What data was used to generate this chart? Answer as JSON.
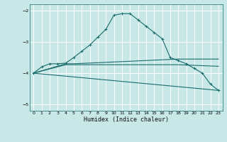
{
  "xlabel": "Humidex (Indice chaleur)",
  "bg_color": "#c8e8e8",
  "grid_color": "#ffffff",
  "line_color": "#1a6b6b",
  "xlim": [
    -0.5,
    23.5
  ],
  "ylim": [
    -5.2,
    -1.8
  ],
  "xticks": [
    0,
    1,
    2,
    3,
    4,
    5,
    6,
    7,
    8,
    9,
    10,
    11,
    12,
    13,
    14,
    15,
    16,
    17,
    18,
    19,
    20,
    21,
    22,
    23
  ],
  "yticks": [
    -5,
    -4,
    -3,
    -2
  ],
  "curve1_x": [
    0,
    1,
    2,
    3,
    4,
    5,
    6,
    7,
    8,
    9,
    10,
    11,
    12,
    13,
    14,
    15,
    16,
    17,
    18,
    19,
    20,
    21,
    22,
    23
  ],
  "curve1_y": [
    -4.0,
    -3.8,
    -3.7,
    -3.7,
    -3.68,
    -3.5,
    -3.3,
    -3.1,
    -2.85,
    -2.6,
    -2.15,
    -2.1,
    -2.1,
    -2.3,
    -2.5,
    -2.7,
    -2.9,
    -3.5,
    -3.6,
    -3.7,
    -3.85,
    -4.0,
    -4.35,
    -4.55
  ],
  "curve2_x": [
    0,
    4,
    5,
    18,
    23
  ],
  "curve2_y": [
    -4.0,
    -3.7,
    -3.7,
    -3.55,
    -3.55
  ],
  "curve3_x": [
    0,
    4,
    5,
    18,
    23
  ],
  "curve3_y": [
    -4.0,
    -3.73,
    -3.73,
    -3.73,
    -3.78
  ],
  "curve4_x": [
    0,
    23
  ],
  "curve4_y": [
    -4.0,
    -4.55
  ]
}
